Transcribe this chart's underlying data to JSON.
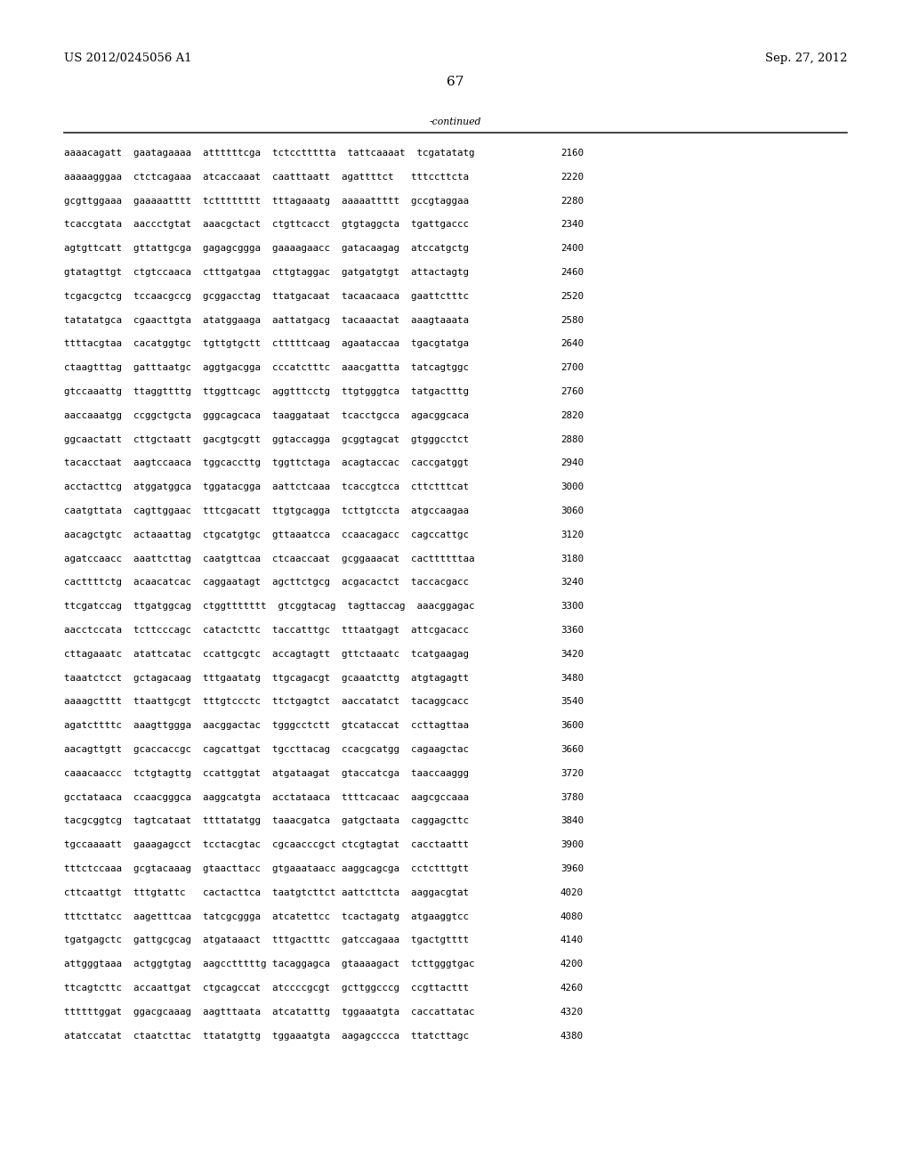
{
  "header_left": "US 2012/0245056 A1",
  "header_right": "Sep. 27, 2012",
  "page_number": "67",
  "continued_label": "-continued",
  "background_color": "#ffffff",
  "text_color": "#000000",
  "font_size_header": 9.5,
  "font_size_body": 7.8,
  "font_size_page_num": 11,
  "lines": [
    {
      "seq": "aaaacagatt  gaatagaaaa  attttttcga  tctccttttta  tattcaaaat  tcgatatatg",
      "num": "2160"
    },
    {
      "seq": "aaaaagggaa  ctctcagaaa  atcaccaaat  caatttaatt  agattttct   tttccttcta",
      "num": "2220"
    },
    {
      "seq": "gcgttggaaa  gaaaaatttt  tctttttttt  tttagaaatg  aaaaattttt  gccgtaggaa",
      "num": "2280"
    },
    {
      "seq": "tcaccgtata  aaccctgtat  aaacgctact  ctgttcacct  gtgtaggcta  tgattgaccc",
      "num": "2340"
    },
    {
      "seq": "agtgttcatt  gttattgcga  gagagcggga  gaaaagaacc  gatacaagag  atccatgctg",
      "num": "2400"
    },
    {
      "seq": "gtatagttgt  ctgtccaaca  ctttgatgaa  cttgtaggac  gatgatgtgt  attactagtg",
      "num": "2460"
    },
    {
      "seq": "tcgacgctcg  tccaacgccg  gcggacctag  ttatgacaat  tacaacaaca  gaattctttc",
      "num": "2520"
    },
    {
      "seq": "tatatatgca  cgaacttgta  atatggaaga  aattatgacg  tacaaactat  aaagtaaata",
      "num": "2580"
    },
    {
      "seq": "ttttacgtaa  cacatggtgc  tgttgtgctt  ctttttcaag  agaataccaa  tgacgtatga",
      "num": "2640"
    },
    {
      "seq": "ctaagtttag  gatttaatgc  aggtgacgga  cccatctttc  aaacgattta  tatcagtggc",
      "num": "2700"
    },
    {
      "seq": "gtccaaattg  ttaggttttg  ttggttcagc  aggtttcctg  ttgtgggtca  tatgactttg",
      "num": "2760"
    },
    {
      "seq": "aaccaaatgg  ccggctgcta  gggcagcaca  taaggataat  tcacctgcca  agacggcaca",
      "num": "2820"
    },
    {
      "seq": "ggcaactatt  cttgctaatt  gacgtgcgtt  ggtaccagga  gcggtagcat  gtgggcctct",
      "num": "2880"
    },
    {
      "seq": "tacacctaat  aagtccaaca  tggcaccttg  tggttctaga  acagtaccac  caccgatggt",
      "num": "2940"
    },
    {
      "seq": "acctacttcg  atggatggca  tggatacgga  aattctcaaa  tcaccgtcca  cttctttcat",
      "num": "3000"
    },
    {
      "seq": "caatgttata  cagttggaac  tttcgacatt  ttgtgcagga  tcttgtccta  atgccaagaa",
      "num": "3060"
    },
    {
      "seq": "aacagctgtc  actaaattag  ctgcatgtgc  gttaaatcca  ccaacagacc  cagccattgc",
      "num": "3120"
    },
    {
      "seq": "agatccaacc  aaattcttag  caatgttcaa  ctcaaccaat  gcggaaacat  cacttttttaa",
      "num": "3180"
    },
    {
      "seq": "cacttttctg  acaacatcac  caggaatagt  agcttctgcg  acgacactct  taccacgacc",
      "num": "3240"
    },
    {
      "seq": "ttcgatccag  ttgatggcag  ctggttttttt  gtcggtacag  tagttaccag  aaacggagac",
      "num": "3300"
    },
    {
      "seq": "aacctccata  tcttcccagc  catactcttc  taccatttgc  tttaatgagt  attcgacacc",
      "num": "3360"
    },
    {
      "seq": "cttagaaatc  atattcatac  ccattgcgtc  accagtagtt  gttctaaatc  tcatgaagag",
      "num": "3420"
    },
    {
      "seq": "taaatctcct  gctagacaag  tttgaatatg  ttgcagacgt  gcaaatcttg  atgtagagtt",
      "num": "3480"
    },
    {
      "seq": "aaaagctttt  ttaattgcgt  tttgtccctc  ttctgagtct  aaccatatct  tacaggcacc",
      "num": "3540"
    },
    {
      "seq": "agatcttttc  aaagttggga  aacggactac  tgggcctctt  gtcataccat  ccttagttaa",
      "num": "3600"
    },
    {
      "seq": "aacagttgtt  gcaccaccgc  cagcattgat  tgccttacag  ccacgcatgg  cagaagctac",
      "num": "3660"
    },
    {
      "seq": "caaacaaccc  tctgtagttg  ccattggtat  atgataagat  gtaccatcga  taaccaaggg",
      "num": "3720"
    },
    {
      "seq": "gcctataaca  ccaacgggca  aaggcatgta  acctataaca  ttttcacaac  aagcgccaaa",
      "num": "3780"
    },
    {
      "seq": "tacgcggtcg  tagtcataat  ttttatatgg  taaacgatca  gatgctaata  caggagcttc",
      "num": "3840"
    },
    {
      "seq": "tgccaaaatt  gaaagagcct  tcctacgtac  cgcaacccgct ctcgtagtat  cacctaattt",
      "num": "3900"
    },
    {
      "seq": "tttctccaaa  gcgtacaaag  gtaacttacc  gtgaaataacc aaggcagcga  cctctttgtt",
      "num": "3960"
    },
    {
      "seq": "cttcaattgt  tttgtattc   cactacttca  taatgtcttct aattcttcta  aaggacgtat",
      "num": "4020"
    },
    {
      "seq": "tttcttatcc  aagetttcaa  tatcgcggga  atcatettcc  tcactagatg  atgaaggtcc",
      "num": "4080"
    },
    {
      "seq": "tgatgagctc  gattgcgcag  atgataaact  tttgactttc  gatccagaaa  tgactgtttt",
      "num": "4140"
    },
    {
      "seq": "attgggtaaa  actggtgtag  aagcctttttg tacaggagca  gtaaaagact  tcttgggtgac",
      "num": "4200"
    },
    {
      "seq": "ttcagtcttc  accaattgat  ctgcagccat  atccccgcgt  gcttggcccg  ccgttacttt",
      "num": "4260"
    },
    {
      "seq": "ttttttggat  ggacgcaaag  aagtttaata  atcatatttg  tggaaatgta  caccattatac",
      "num": "4320"
    },
    {
      "seq": "atatccatat  ctaatcttac  ttatatgttg  tggaaatgta  aagagcccca  ttatcttagc",
      "num": "4380"
    }
  ]
}
